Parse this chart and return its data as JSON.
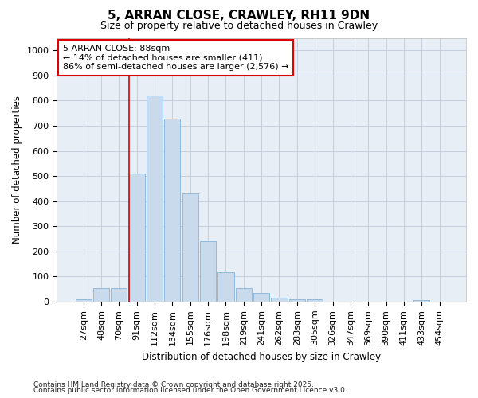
{
  "title": "5, ARRAN CLOSE, CRAWLEY, RH11 9DN",
  "subtitle": "Size of property relative to detached houses in Crawley",
  "xlabel": "Distribution of detached houses by size in Crawley",
  "ylabel": "Number of detached properties",
  "footnote1": "Contains HM Land Registry data © Crown copyright and database right 2025.",
  "footnote2": "Contains public sector information licensed under the Open Government Licence v3.0.",
  "annotation_title": "5 ARRAN CLOSE: 88sqm",
  "annotation_line2": "← 14% of detached houses are smaller (411)",
  "annotation_line3": "86% of semi-detached houses are larger (2,576) →",
  "bar_color": "#c8daec",
  "bar_edge_color": "#89b4d4",
  "line_color": "#dd0000",
  "grid_color": "#c5d0dc",
  "bg_color": "#e8eef5",
  "plot_bg": "#f0f4f8",
  "categories": [
    "27sqm",
    "48sqm",
    "70sqm",
    "91sqm",
    "112sqm",
    "134sqm",
    "155sqm",
    "176sqm",
    "198sqm",
    "219sqm",
    "241sqm",
    "262sqm",
    "283sqm",
    "305sqm",
    "326sqm",
    "347sqm",
    "369sqm",
    "390sqm",
    "411sqm",
    "433sqm",
    "454sqm"
  ],
  "values": [
    8,
    55,
    55,
    510,
    820,
    730,
    430,
    240,
    118,
    55,
    35,
    15,
    10,
    10,
    0,
    0,
    0,
    0,
    0,
    5,
    0
  ],
  "ylim": [
    0,
    1050
  ],
  "yticks": [
    0,
    100,
    200,
    300,
    400,
    500,
    600,
    700,
    800,
    900,
    1000
  ],
  "red_line_bin": 3,
  "title_fontsize": 11,
  "subtitle_fontsize": 9,
  "axis_label_fontsize": 8.5,
  "tick_fontsize": 8,
  "annot_fontsize": 8,
  "footnote_fontsize": 6.5
}
